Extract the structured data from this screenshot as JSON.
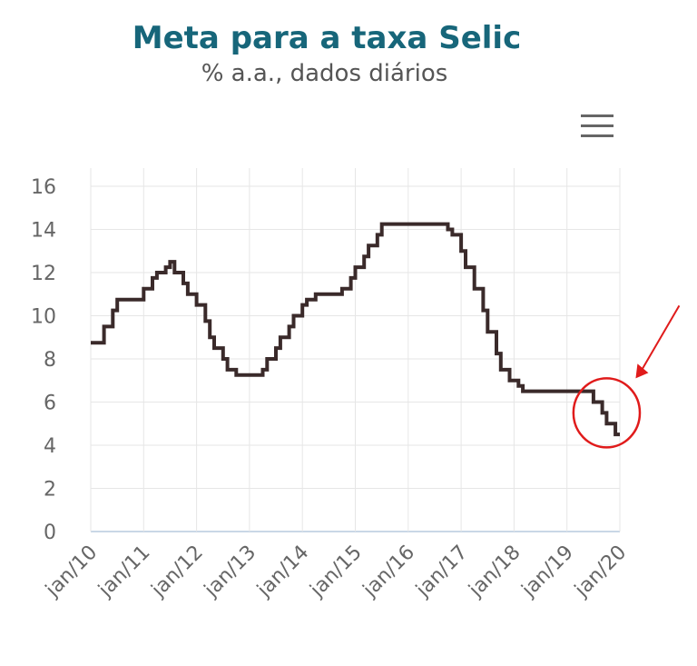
{
  "title": "Meta para a taxa Selic",
  "subtitle": "% a.a., dados diários",
  "menu_icon": "hamburger-menu-icon",
  "colors": {
    "title": "#17667a",
    "line": "#3a2a2a",
    "grid": "#e6e6e6",
    "axis": "#c9d7e6",
    "annotation": "#e01b1b"
  },
  "chart_data": {
    "type": "line",
    "title": "Meta para a taxa Selic",
    "subtitle": "% a.a., dados diários",
    "ylim": [
      0,
      16
    ],
    "yticks": [
      "0",
      "2",
      "4",
      "6",
      "8",
      "10",
      "12",
      "14",
      "16"
    ],
    "xticks": [
      "jan/10",
      "jan/11",
      "jan/12",
      "jan/13",
      "jan/14",
      "jan/15",
      "jan/16",
      "jan/17",
      "jan/18",
      "jan/19",
      "jan/20"
    ],
    "grid": true,
    "legend": "none",
    "series": [
      {
        "values": [
          [
            "2010-01",
            8.75
          ],
          [
            "2010-04",
            8.75
          ],
          [
            "2010-04",
            9.5
          ],
          [
            "2010-06",
            9.5
          ],
          [
            "2010-06",
            10.25
          ],
          [
            "2010-07",
            10.25
          ],
          [
            "2010-07",
            10.75
          ],
          [
            "2011-01",
            10.75
          ],
          [
            "2011-01",
            11.25
          ],
          [
            "2011-03",
            11.25
          ],
          [
            "2011-03",
            11.75
          ],
          [
            "2011-04",
            11.75
          ],
          [
            "2011-04",
            12.0
          ],
          [
            "2011-06",
            12.0
          ],
          [
            "2011-06",
            12.25
          ],
          [
            "2011-07",
            12.25
          ],
          [
            "2011-07",
            12.5
          ],
          [
            "2011-08",
            12.5
          ],
          [
            "2011-08",
            12.0
          ],
          [
            "2011-10",
            12.0
          ],
          [
            "2011-10",
            11.5
          ],
          [
            "2011-11",
            11.5
          ],
          [
            "2011-11",
            11.0
          ],
          [
            "2012-01",
            11.0
          ],
          [
            "2012-01",
            10.5
          ],
          [
            "2012-03",
            10.5
          ],
          [
            "2012-03",
            9.75
          ],
          [
            "2012-04",
            9.75
          ],
          [
            "2012-04",
            9.0
          ],
          [
            "2012-05",
            9.0
          ],
          [
            "2012-05",
            8.5
          ],
          [
            "2012-07",
            8.5
          ],
          [
            "2012-07",
            8.0
          ],
          [
            "2012-08",
            8.0
          ],
          [
            "2012-08",
            7.5
          ],
          [
            "2012-10",
            7.5
          ],
          [
            "2012-10",
            7.25
          ],
          [
            "2013-04",
            7.25
          ],
          [
            "2013-04",
            7.5
          ],
          [
            "2013-05",
            7.5
          ],
          [
            "2013-05",
            8.0
          ],
          [
            "2013-07",
            8.0
          ],
          [
            "2013-07",
            8.5
          ],
          [
            "2013-08",
            8.5
          ],
          [
            "2013-08",
            9.0
          ],
          [
            "2013-10",
            9.0
          ],
          [
            "2013-10",
            9.5
          ],
          [
            "2013-11",
            9.5
          ],
          [
            "2013-11",
            10.0
          ],
          [
            "2014-01",
            10.0
          ],
          [
            "2014-01",
            10.5
          ],
          [
            "2014-02",
            10.5
          ],
          [
            "2014-02",
            10.75
          ],
          [
            "2014-04",
            10.75
          ],
          [
            "2014-04",
            11.0
          ],
          [
            "2014-10",
            11.0
          ],
          [
            "2014-10",
            11.25
          ],
          [
            "2014-12",
            11.25
          ],
          [
            "2014-12",
            11.75
          ],
          [
            "2015-01",
            11.75
          ],
          [
            "2015-01",
            12.25
          ],
          [
            "2015-03",
            12.25
          ],
          [
            "2015-03",
            12.75
          ],
          [
            "2015-04",
            12.75
          ],
          [
            "2015-04",
            13.25
          ],
          [
            "2015-06",
            13.25
          ],
          [
            "2015-06",
            13.75
          ],
          [
            "2015-07",
            13.75
          ],
          [
            "2015-07",
            14.25
          ],
          [
            "2016-10",
            14.25
          ],
          [
            "2016-10",
            14.0
          ],
          [
            "2016-11",
            14.0
          ],
          [
            "2016-11",
            13.75
          ],
          [
            "2017-01",
            13.75
          ],
          [
            "2017-01",
            13.0
          ],
          [
            "2017-02",
            13.0
          ],
          [
            "2017-02",
            12.25
          ],
          [
            "2017-04",
            12.25
          ],
          [
            "2017-04",
            11.25
          ],
          [
            "2017-05",
            11.25
          ],
          [
            "2017-06",
            11.25
          ],
          [
            "2017-06",
            10.25
          ],
          [
            "2017-07",
            10.25
          ],
          [
            "2017-07",
            9.25
          ],
          [
            "2017-09",
            9.25
          ],
          [
            "2017-09",
            8.25
          ],
          [
            "2017-10",
            8.25
          ],
          [
            "2017-10",
            7.5
          ],
          [
            "2017-12",
            7.5
          ],
          [
            "2017-12",
            7.0
          ],
          [
            "2018-02",
            7.0
          ],
          [
            "2018-02",
            6.75
          ],
          [
            "2018-03",
            6.75
          ],
          [
            "2018-03",
            6.5
          ],
          [
            "2019-07",
            6.5
          ],
          [
            "2019-07",
            6.0
          ],
          [
            "2019-09",
            6.0
          ],
          [
            "2019-09",
            5.5
          ],
          [
            "2019-10",
            5.5
          ],
          [
            "2019-10",
            5.0
          ],
          [
            "2019-12",
            5.0
          ],
          [
            "2019-12",
            4.5
          ],
          [
            "2020-01",
            4.5
          ]
        ]
      }
    ],
    "annotation": {
      "type": "circle-with-arrow",
      "target_range": [
        "2019-07",
        "2020-01"
      ]
    }
  }
}
